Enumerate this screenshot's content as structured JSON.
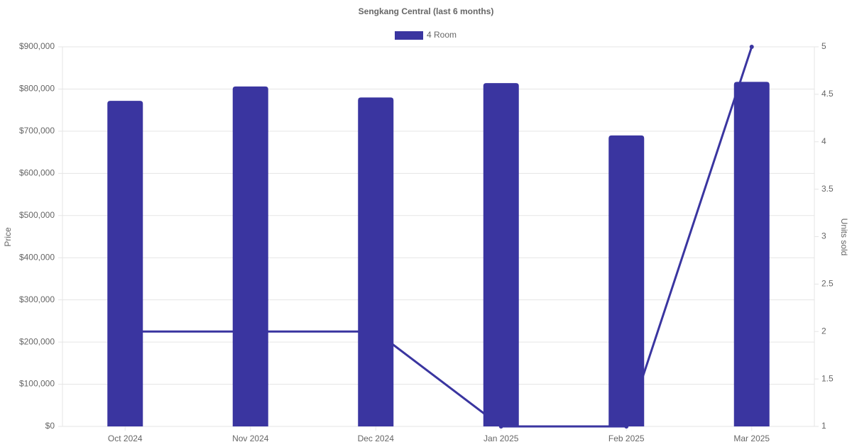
{
  "chart_data": {
    "type": "bar",
    "title": "Sengkang Central (last 6 months)",
    "y_label": "Price",
    "y2_label": "Units sold",
    "categories": [
      "Oct 2024",
      "Nov 2024",
      "Dec 2024",
      "Jan 2025",
      "Feb 2025",
      "Mar 2025"
    ],
    "series": [
      {
        "name": "4 Room",
        "type": "bar",
        "color": "#3a35a0",
        "values": [
          772000,
          806000,
          780000,
          814000,
          690000,
          817000
        ]
      },
      {
        "type": "line",
        "axis": "y2",
        "color": "#3a35a0",
        "values": [
          2,
          2,
          2,
          1,
          1,
          5
        ]
      }
    ],
    "ylim": [
      0,
      900000
    ],
    "yticks": [
      {
        "value": 0,
        "label": "$0"
      },
      {
        "value": 100000,
        "label": "$100,000"
      },
      {
        "value": 200000,
        "label": "$200,000"
      },
      {
        "value": 300000,
        "label": "$300,000"
      },
      {
        "value": 400000,
        "label": "$400,000"
      },
      {
        "value": 500000,
        "label": "$500,000"
      },
      {
        "value": 600000,
        "label": "$600,000"
      },
      {
        "value": 700000,
        "label": "$700,000"
      },
      {
        "value": 800000,
        "label": "$800,000"
      },
      {
        "value": 900000,
        "label": "$900,000"
      }
    ],
    "y2lim": [
      1,
      5
    ],
    "y2ticks": [
      1,
      1.5,
      2,
      2.5,
      3,
      3.5,
      4,
      4.5,
      5
    ],
    "grid": true,
    "legend": "top"
  }
}
